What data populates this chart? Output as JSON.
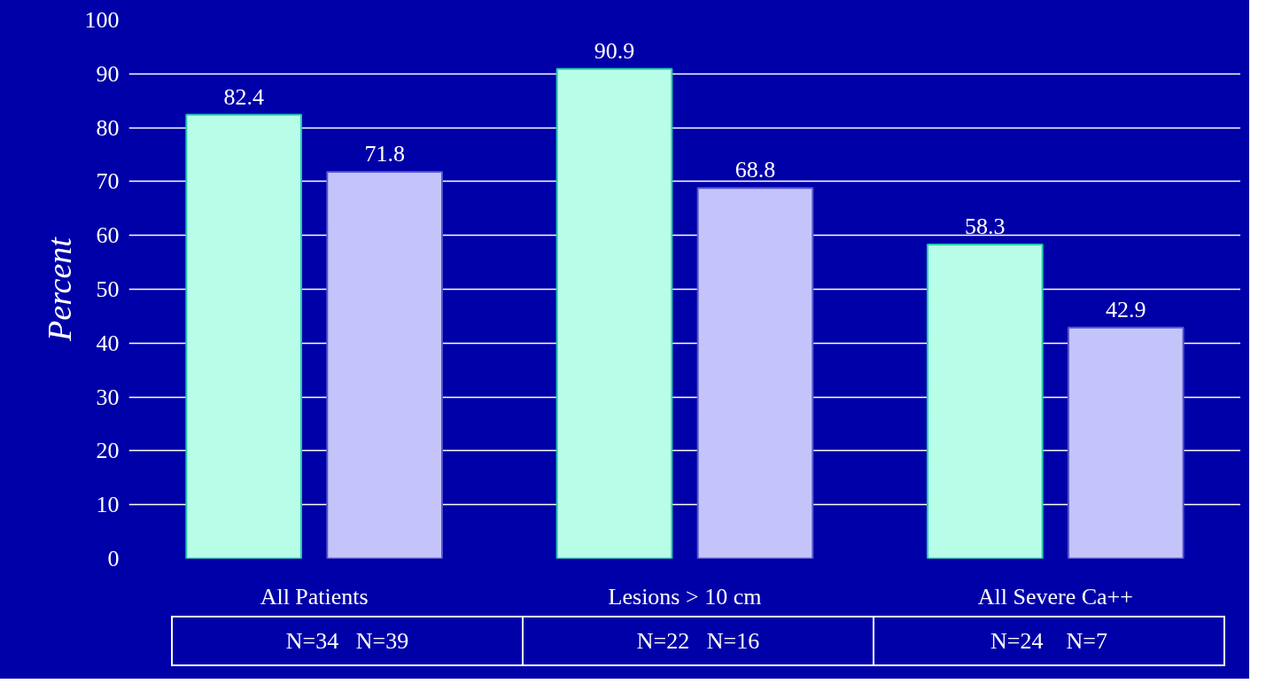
{
  "chart_data": {
    "type": "bar",
    "ylabel": "Percent",
    "categories": [
      "All Patients",
      "Lesions > 10 cm",
      "All Severe Ca++"
    ],
    "series": [
      {
        "color": "#b8fde8",
        "values": [
          82.4,
          90.9,
          58.3
        ]
      },
      {
        "color": "#c4c4fb",
        "values": [
          71.8,
          68.8,
          42.9
        ]
      }
    ],
    "ylim": [
      0,
      100
    ],
    "yticks": [
      0,
      10,
      20,
      30,
      40,
      50,
      60,
      70,
      80,
      90,
      100
    ],
    "grid": "y",
    "data_labels": true,
    "annotations": [
      "N=34   N=39",
      "N=22   N=16",
      "N=24    N=7"
    ]
  }
}
